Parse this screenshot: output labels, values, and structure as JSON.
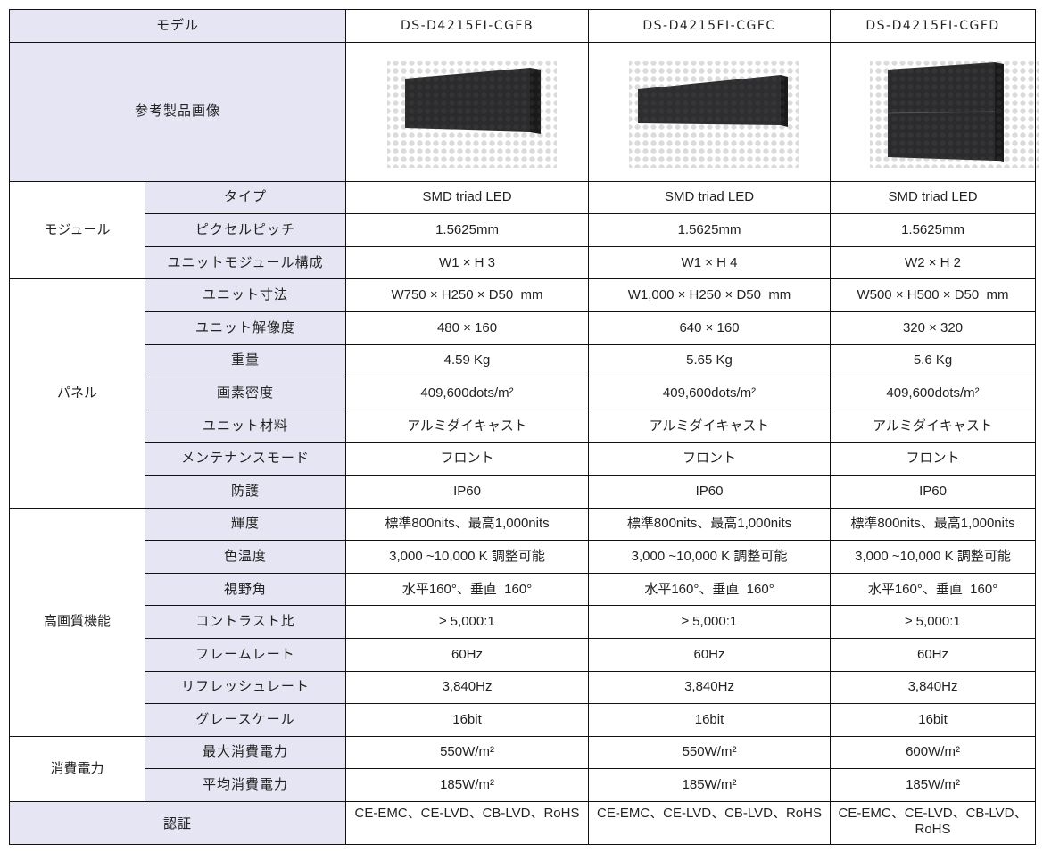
{
  "header": {
    "label": "モデル",
    "models": [
      "DS-D4215FI-CGFB",
      "DS-D4215FI-CGFC",
      "DS-D4215FI-CGFD"
    ]
  },
  "image_row": {
    "label": "参考製品画像"
  },
  "groups": [
    {
      "name": "モジュール",
      "rows": [
        {
          "label": "タイプ",
          "values": [
            "SMD triad LED",
            "SMD triad LED",
            "SMD triad LED"
          ]
        },
        {
          "label": "ピクセルピッチ",
          "values": [
            "1.5625mm",
            "1.5625mm",
            "1.5625mm"
          ]
        },
        {
          "label": "ユニットモジュール構成",
          "values": [
            "W1 × H 3",
            "W1 × H 4",
            "W2 × H 2"
          ]
        }
      ]
    },
    {
      "name": "パネル",
      "rows": [
        {
          "label": "ユニット寸法",
          "values": [
            "W750 × H250 × D50  mm",
            "W1,000 × H250 × D50  mm",
            "W500 × H500 × D50  mm"
          ]
        },
        {
          "label": "ユニット解像度",
          "values": [
            "480 × 160",
            "640 × 160",
            "320 × 320"
          ]
        },
        {
          "label": "重量",
          "values": [
            "4.59 Kg",
            "5.65 Kg",
            "5.6 Kg"
          ]
        },
        {
          "label": "画素密度",
          "values": [
            "409,600dots/m²",
            "409,600dots/m²",
            "409,600dots/m²"
          ]
        },
        {
          "label": "ユニット材料",
          "values": [
            "アルミダイキャスト",
            "アルミダイキャスト",
            "アルミダイキャスト"
          ]
        },
        {
          "label": "メンテナンスモード",
          "values": [
            "フロント",
            "フロント",
            "フロント"
          ]
        },
        {
          "label": "防護",
          "values": [
            "IP60",
            "IP60",
            "IP60"
          ]
        }
      ]
    },
    {
      "name": "高画質機能",
      "rows": [
        {
          "label": "輝度",
          "values": [
            "標準800nits、最高1,000nits",
            "標準800nits、最高1,000nits",
            "標準800nits、最高1,000nits"
          ]
        },
        {
          "label": "色温度",
          "values": [
            "3,000 ~10,000 K 調整可能",
            "3,000 ~10,000 K 調整可能",
            "3,000 ~10,000 K 調整可能"
          ]
        },
        {
          "label": "視野角",
          "values": [
            "水平160°、垂直  160°",
            "水平160°、垂直  160°",
            "水平160°、垂直  160°"
          ]
        },
        {
          "label": "コントラスト比",
          "values": [
            "≥ 5,000:1",
            "≥ 5,000:1",
            "≥ 5,000:1"
          ]
        },
        {
          "label": "フレームレート",
          "values": [
            "60Hz",
            "60Hz",
            "60Hz"
          ]
        },
        {
          "label": "リフレッシュレート",
          "values": [
            "3,840Hz",
            "3,840Hz",
            "3,840Hz"
          ]
        },
        {
          "label": "グレースケール",
          "values": [
            "16bit",
            "16bit",
            "16bit"
          ]
        }
      ]
    },
    {
      "name": "消費電力",
      "rows": [
        {
          "label": "最大消費電力",
          "values": [
            "550W/m²",
            "550W/m²",
            "600W/m²"
          ]
        },
        {
          "label": "平均消費電力",
          "values": [
            "185W/m²",
            "185W/m²",
            "185W/m²"
          ]
        }
      ]
    }
  ],
  "certification": {
    "label": "認証",
    "values": [
      "CE-EMC、CE-LVD、CB-LVD、RoHS",
      "CE-EMC、CE-LVD、CB-LVD、RoHS",
      "CE-EMC、CE-LVD、CB-LVD、RoHS"
    ]
  }
}
